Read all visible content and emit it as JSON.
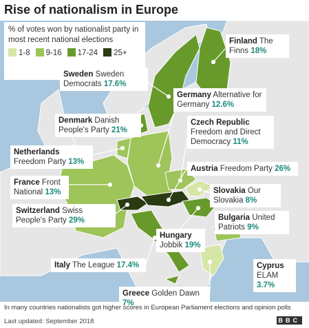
{
  "header": {
    "title": "Rise of nationalism in Europe"
  },
  "legend": {
    "title": "% of votes won by nationalist party in most recent national elections",
    "items": [
      {
        "label": "1-8",
        "color": "#d5e6a6"
      },
      {
        "label": "9-16",
        "color": "#9ec45a"
      },
      {
        "label": "17-24",
        "color": "#679a2a"
      },
      {
        "label": "25+",
        "color": "#2a3a12"
      }
    ]
  },
  "callouts": [
    {
      "country": "Finland",
      "party": "The Finns",
      "share": "18%"
    },
    {
      "country": "Sweden",
      "party": "Sweden Democrats",
      "share": "17.6%"
    },
    {
      "country": "Germany",
      "party": "Alternative for Germany",
      "share": "12.6%"
    },
    {
      "country": "Denmark",
      "party": "Danish People's Party",
      "share": "21%"
    },
    {
      "country": "Czech Republic",
      "party": "Freedom and Direct Democracy",
      "share": "11%"
    },
    {
      "country": "Netherlands",
      "party": "Freedom Party",
      "share": "13%"
    },
    {
      "country": "France",
      "party": "Front National",
      "share": "13%"
    },
    {
      "country": "Austria",
      "party": "Freedom Party",
      "share": "26%"
    },
    {
      "country": "Slovakia",
      "party": "Our Slovakia",
      "share": "8%"
    },
    {
      "country": "Switzerland",
      "party": "Swiss People's Party",
      "share": "29%"
    },
    {
      "country": "Bulgaria",
      "party": "United Patriots",
      "share": "9%"
    },
    {
      "country": "Hungary",
      "party": "Jobbik",
      "share": "19%"
    },
    {
      "country": "Italy",
      "party": "The League",
      "share": "17.4%"
    },
    {
      "country": "Cyprus",
      "party": "ELAM",
      "share": "3.7%"
    },
    {
      "country": "Greece",
      "party": "Golden Dawn",
      "share": "7%"
    }
  ],
  "footer": {
    "note": "In many countries nationalists got higher scores in European Parliament elections and opinion polls",
    "updated": "Last updated: September 2018",
    "logo": "BBC"
  }
}
